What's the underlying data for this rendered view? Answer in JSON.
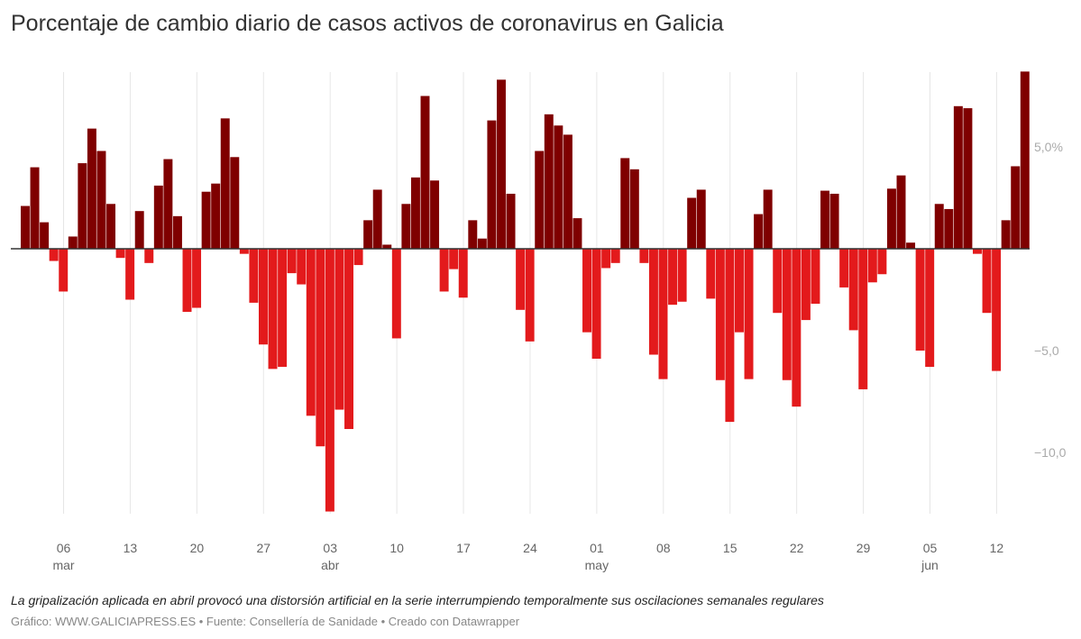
{
  "title": "Porcentaje de cambio diario de casos activos de coronavirus en Galicia",
  "note": "La gripalización aplicada en abril provocó una distorsión artificial en la serie interrumpiendo temporalmente sus oscilaciones semanales regulares",
  "footer": "Gráfico: WWW.GALICIAPRESS.ES • Fuente: Consellería de Sanidade • Creado con Datawrapper",
  "colors": {
    "positive": "#7f0000",
    "negative": "#e31a1c",
    "grid": "#e6e6e6",
    "zero": "#333333"
  },
  "chart_data": {
    "type": "bar",
    "title": "Porcentaje de cambio diario de casos activos de coronavirus en Galicia",
    "start_date": "2020-03-02",
    "end_date": "2020-06-15",
    "ylim": [
      -13,
      8.7
    ],
    "grid": true,
    "y_ticks": [
      {
        "value": 5,
        "label": "5,0%"
      },
      {
        "value": -5,
        "label": "−5,0"
      },
      {
        "value": -10,
        "label": "−10,0"
      }
    ],
    "x_ticks": [
      {
        "date": "2020-03-06",
        "label": "06",
        "month": "mar"
      },
      {
        "date": "2020-03-13",
        "label": "13"
      },
      {
        "date": "2020-03-20",
        "label": "20"
      },
      {
        "date": "2020-03-27",
        "label": "27"
      },
      {
        "date": "2020-04-03",
        "label": "03",
        "month": "abr"
      },
      {
        "date": "2020-04-10",
        "label": "10"
      },
      {
        "date": "2020-04-17",
        "label": "17"
      },
      {
        "date": "2020-04-24",
        "label": "24"
      },
      {
        "date": "2020-05-01",
        "label": "01",
        "month": "may"
      },
      {
        "date": "2020-05-08",
        "label": "08"
      },
      {
        "date": "2020-05-15",
        "label": "15"
      },
      {
        "date": "2020-05-22",
        "label": "22"
      },
      {
        "date": "2020-05-29",
        "label": "29"
      },
      {
        "date": "2020-06-05",
        "label": "05",
        "month": "jun"
      },
      {
        "date": "2020-06-12",
        "label": "12"
      }
    ],
    "values": [
      2.1,
      4.0,
      1.3,
      -0.6,
      -2.1,
      0.6,
      4.2,
      5.9,
      4.8,
      2.2,
      -0.45,
      -2.5,
      1.85,
      -0.7,
      3.1,
      4.4,
      1.6,
      -3.1,
      -2.9,
      2.8,
      3.2,
      6.4,
      4.5,
      -0.25,
      -2.65,
      -4.7,
      -5.9,
      -5.8,
      -1.2,
      -1.75,
      -8.2,
      -9.7,
      -12.9,
      -7.9,
      -8.85,
      -0.8,
      1.4,
      2.9,
      0.2,
      -4.4,
      2.2,
      3.5,
      7.5,
      3.35,
      -2.1,
      -1.0,
      -2.4,
      1.4,
      0.5,
      6.3,
      8.3,
      2.7,
      -3.0,
      -4.55,
      4.8,
      6.6,
      6.05,
      5.6,
      1.5,
      -4.1,
      -5.4,
      -0.95,
      -0.7,
      4.45,
      3.9,
      -0.7,
      -5.2,
      -6.4,
      -2.75,
      -2.6,
      2.5,
      2.9,
      -2.45,
      -6.45,
      -8.5,
      -4.1,
      -6.4,
      1.7,
      2.9,
      -3.15,
      -6.45,
      -7.75,
      -3.5,
      -2.7,
      2.85,
      2.7,
      -1.9,
      -4.0,
      -6.9,
      -1.65,
      -1.25,
      2.95,
      3.6,
      0.3,
      -5.0,
      -5.8,
      2.2,
      1.95,
      7.0,
      6.9,
      -0.25,
      -3.15,
      -6.0,
      1.4,
      4.05,
      8.7
    ]
  }
}
